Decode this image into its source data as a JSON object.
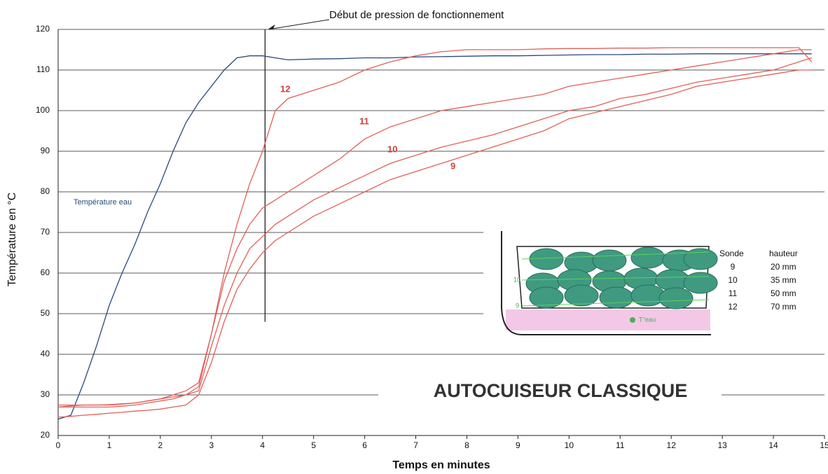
{
  "chart_data": {
    "type": "line",
    "title": "AUTOCUISEUR CLASSIQUE",
    "x_label": "Temps en minutes",
    "y_label": "Température en °C",
    "x": [
      0,
      0.25,
      0.5,
      0.75,
      1,
      1.25,
      1.5,
      1.75,
      2,
      2.25,
      2.5,
      2.75,
      3,
      3.25,
      3.5,
      3.75,
      4,
      4.25,
      4.5,
      5,
      5.5,
      6,
      6.5,
      7,
      7.5,
      8,
      8.5,
      9,
      9.5,
      10,
      10.5,
      11,
      11.5,
      12,
      12.5,
      13,
      13.5,
      14,
      14.5,
      14.75
    ],
    "series": [
      {
        "name": "Température eau",
        "color": "#2a4a7a",
        "values": [
          24,
          25,
          33,
          42,
          52,
          60,
          67,
          75,
          82,
          90,
          97,
          102,
          106,
          110,
          113,
          113.5,
          113.5,
          113,
          112.5,
          112.7,
          112.8,
          113,
          113,
          113.2,
          113.3,
          113.4,
          113.5,
          113.5,
          113.6,
          113.7,
          113.8,
          113.8,
          113.9,
          113.9,
          114,
          114,
          114,
          114,
          114,
          114
        ]
      },
      {
        "name": "12",
        "color": "#e0605a",
        "values": [
          27,
          27.3,
          27.5,
          27.5,
          27.5,
          27.7,
          28,
          28.5,
          29,
          29.5,
          30,
          32,
          45,
          60,
          72,
          82,
          90,
          100,
          103,
          105,
          107,
          110,
          112,
          113.5,
          114.5,
          115,
          115,
          115,
          115.2,
          115.3,
          115.3,
          115.4,
          115.4,
          115.5,
          115.5,
          115.5,
          115.5,
          115.5,
          115.5,
          112
        ]
      },
      {
        "name": "11",
        "color": "#e0605a",
        "values": [
          27.5,
          27.5,
          27.5,
          27.5,
          27.6,
          27.8,
          28,
          28.5,
          29,
          30,
          31,
          33,
          45,
          58,
          66,
          72,
          76,
          78,
          80,
          84,
          88,
          93,
          96,
          98,
          100,
          101,
          102,
          103,
          104,
          106,
          107,
          108,
          109,
          110,
          111,
          112,
          113,
          114,
          115,
          115
        ]
      },
      {
        "name": "10",
        "color": "#e0605a",
        "values": [
          27,
          27,
          27,
          27,
          27,
          27.2,
          27.5,
          28,
          28.5,
          29,
          30,
          31,
          42,
          52,
          60,
          66,
          69,
          72,
          74,
          78,
          81,
          84,
          87,
          89,
          91,
          92.5,
          94,
          96,
          98,
          100,
          101,
          103,
          104,
          105.5,
          107,
          108,
          109,
          110,
          112,
          113
        ]
      },
      {
        "name": "9",
        "color": "#e0605a",
        "values": [
          24.5,
          24.7,
          25,
          25.2,
          25.5,
          25.7,
          26,
          26.2,
          26.5,
          27,
          27.5,
          30,
          38,
          48,
          56,
          61,
          65,
          68,
          70,
          74,
          77,
          80,
          83,
          85,
          87,
          89,
          91,
          93,
          95,
          98,
          99.5,
          101,
          102.5,
          104,
          106,
          107,
          108,
          109,
          110,
          110
        ]
      }
    ],
    "xlim": [
      0,
      15
    ],
    "xticks": [
      0,
      1,
      2,
      3,
      4,
      5,
      6,
      7,
      8,
      9,
      10,
      11,
      12,
      13,
      14,
      15
    ],
    "ylim": [
      20,
      120
    ],
    "yticks": [
      20,
      30,
      40,
      50,
      60,
      70,
      80,
      90,
      100,
      110,
      120
    ],
    "grid": true,
    "annotation": {
      "text": "Début  de pression de fonctionnement",
      "x": 4.05,
      "y_range": [
        48,
        120
      ]
    },
    "inset": {
      "labels": [
        "10",
        "9",
        "T°eau"
      ],
      "table": {
        "header": [
          "Sonde",
          "hauteur"
        ],
        "rows": [
          [
            "9",
            "20 mm"
          ],
          [
            "10",
            "35 mm"
          ],
          [
            "11",
            "50 mm"
          ],
          [
            "12",
            "70 mm"
          ]
        ]
      }
    }
  }
}
